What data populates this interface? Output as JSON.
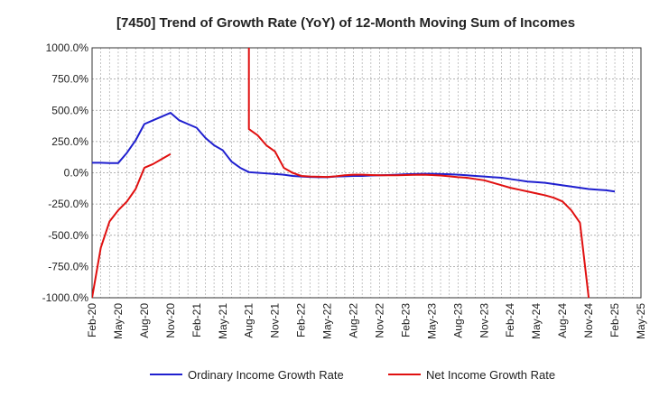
{
  "chart_data": {
    "type": "line",
    "title": "[7450]  Trend of Growth Rate (YoY) of 12-Month Moving Sum of Incomes",
    "xlabel": "",
    "ylabel": "",
    "ylim": [
      -1000,
      1000
    ],
    "yticks": [
      1000,
      750,
      500,
      250,
      0,
      -250,
      -500,
      -750,
      -1000
    ],
    "ytick_labels": [
      "1000.0%",
      "750.0%",
      "500.0%",
      "250.0%",
      "0.0%",
      "-250.0%",
      "-500.0%",
      "-750.0%",
      "-1000.0%"
    ],
    "xlim": [
      "2020-02",
      "2025-05"
    ],
    "xticks": [
      "Feb-20",
      "May-20",
      "Aug-20",
      "Nov-20",
      "Feb-21",
      "May-21",
      "Aug-21",
      "Nov-21",
      "Feb-22",
      "May-22",
      "Aug-22",
      "Nov-22",
      "Feb-23",
      "May-23",
      "Aug-23",
      "Nov-23",
      "Feb-24",
      "May-24",
      "Aug-24",
      "Nov-24",
      "Feb-25",
      "May-25"
    ],
    "grid": true,
    "legend_position": "bottom",
    "series": [
      {
        "name": "Ordinary Income Growth Rate",
        "color": "#1f1fcf",
        "points": [
          [
            "2020-02",
            80
          ],
          [
            "2020-03",
            80
          ],
          [
            "2020-04",
            78
          ],
          [
            "2020-05",
            78
          ],
          [
            "2020-06",
            160
          ],
          [
            "2020-07",
            260
          ],
          [
            "2020-08",
            390
          ],
          [
            "2020-09",
            420
          ],
          [
            "2020-10",
            450
          ],
          [
            "2020-11",
            480
          ],
          [
            "2020-12",
            420
          ],
          [
            "2021-01",
            390
          ],
          [
            "2021-02",
            360
          ],
          [
            "2021-03",
            280
          ],
          [
            "2021-04",
            220
          ],
          [
            "2021-05",
            180
          ],
          [
            "2021-06",
            90
          ],
          [
            "2021-07",
            40
          ],
          [
            "2021-08",
            5
          ],
          [
            "2021-09",
            0
          ],
          [
            "2021-10",
            -5
          ],
          [
            "2021-11",
            -10
          ],
          [
            "2021-12",
            -15
          ],
          [
            "2022-01",
            -25
          ],
          [
            "2022-02",
            -30
          ],
          [
            "2022-03",
            -33
          ],
          [
            "2022-04",
            -35
          ],
          [
            "2022-05",
            -35
          ],
          [
            "2022-06",
            -30
          ],
          [
            "2022-07",
            -28
          ],
          [
            "2022-08",
            -25
          ],
          [
            "2022-09",
            -25
          ],
          [
            "2022-10",
            -22
          ],
          [
            "2022-11",
            -20
          ],
          [
            "2022-12",
            -18
          ],
          [
            "2023-01",
            -15
          ],
          [
            "2023-02",
            -12
          ],
          [
            "2023-03",
            -10
          ],
          [
            "2023-04",
            -8
          ],
          [
            "2023-05",
            -8
          ],
          [
            "2023-06",
            -10
          ],
          [
            "2023-07",
            -12
          ],
          [
            "2023-08",
            -15
          ],
          [
            "2023-09",
            -20
          ],
          [
            "2023-10",
            -25
          ],
          [
            "2023-11",
            -30
          ],
          [
            "2023-12",
            -35
          ],
          [
            "2024-01",
            -40
          ],
          [
            "2024-02",
            -50
          ],
          [
            "2024-03",
            -60
          ],
          [
            "2024-04",
            -70
          ],
          [
            "2024-05",
            -75
          ],
          [
            "2024-06",
            -80
          ],
          [
            "2024-07",
            -90
          ],
          [
            "2024-08",
            -100
          ],
          [
            "2024-09",
            -110
          ],
          [
            "2024-10",
            -120
          ],
          [
            "2024-11",
            -130
          ],
          [
            "2024-12",
            -135
          ],
          [
            "2025-01",
            -140
          ],
          [
            "2025-02",
            -150
          ]
        ]
      },
      {
        "name": "Net Income Growth Rate",
        "color": "#e01010",
        "segments": [
          [
            [
              "2020-02",
              -1000
            ],
            [
              "2020-03",
              -600
            ],
            [
              "2020-04",
              -390
            ],
            [
              "2020-05",
              -300
            ],
            [
              "2020-06",
              -230
            ],
            [
              "2020-07",
              -130
            ],
            [
              "2020-08",
              40
            ],
            [
              "2020-09",
              70
            ],
            [
              "2020-10",
              110
            ],
            [
              "2020-11",
              150
            ]
          ],
          [
            [
              "2021-08",
              1000
            ],
            [
              "2021-08",
              350
            ],
            [
              "2021-09",
              300
            ],
            [
              "2021-10",
              220
            ],
            [
              "2021-11",
              170
            ],
            [
              "2021-12",
              40
            ],
            [
              "2022-01",
              0
            ],
            [
              "2022-02",
              -25
            ],
            [
              "2022-03",
              -30
            ],
            [
              "2022-04",
              -32
            ],
            [
              "2022-05",
              -33
            ],
            [
              "2022-06",
              -28
            ],
            [
              "2022-07",
              -20
            ],
            [
              "2022-08",
              -15
            ],
            [
              "2022-09",
              -15
            ],
            [
              "2022-10",
              -18
            ],
            [
              "2022-11",
              -20
            ],
            [
              "2022-12",
              -20
            ],
            [
              "2023-01",
              -20
            ],
            [
              "2023-02",
              -18
            ],
            [
              "2023-03",
              -16
            ],
            [
              "2023-04",
              -15
            ],
            [
              "2023-05",
              -18
            ],
            [
              "2023-06",
              -22
            ],
            [
              "2023-07",
              -28
            ],
            [
              "2023-08",
              -35
            ],
            [
              "2023-09",
              -40
            ],
            [
              "2023-10",
              -50
            ],
            [
              "2023-11",
              -60
            ],
            [
              "2023-12",
              -80
            ],
            [
              "2024-01",
              -100
            ],
            [
              "2024-02",
              -120
            ],
            [
              "2024-03",
              -135
            ],
            [
              "2024-04",
              -150
            ],
            [
              "2024-05",
              -165
            ],
            [
              "2024-06",
              -180
            ],
            [
              "2024-07",
              -200
            ],
            [
              "2024-08",
              -230
            ],
            [
              "2024-09",
              -300
            ],
            [
              "2024-10",
              -400
            ],
            [
              "2024-11",
              -1000
            ]
          ]
        ]
      }
    ]
  }
}
